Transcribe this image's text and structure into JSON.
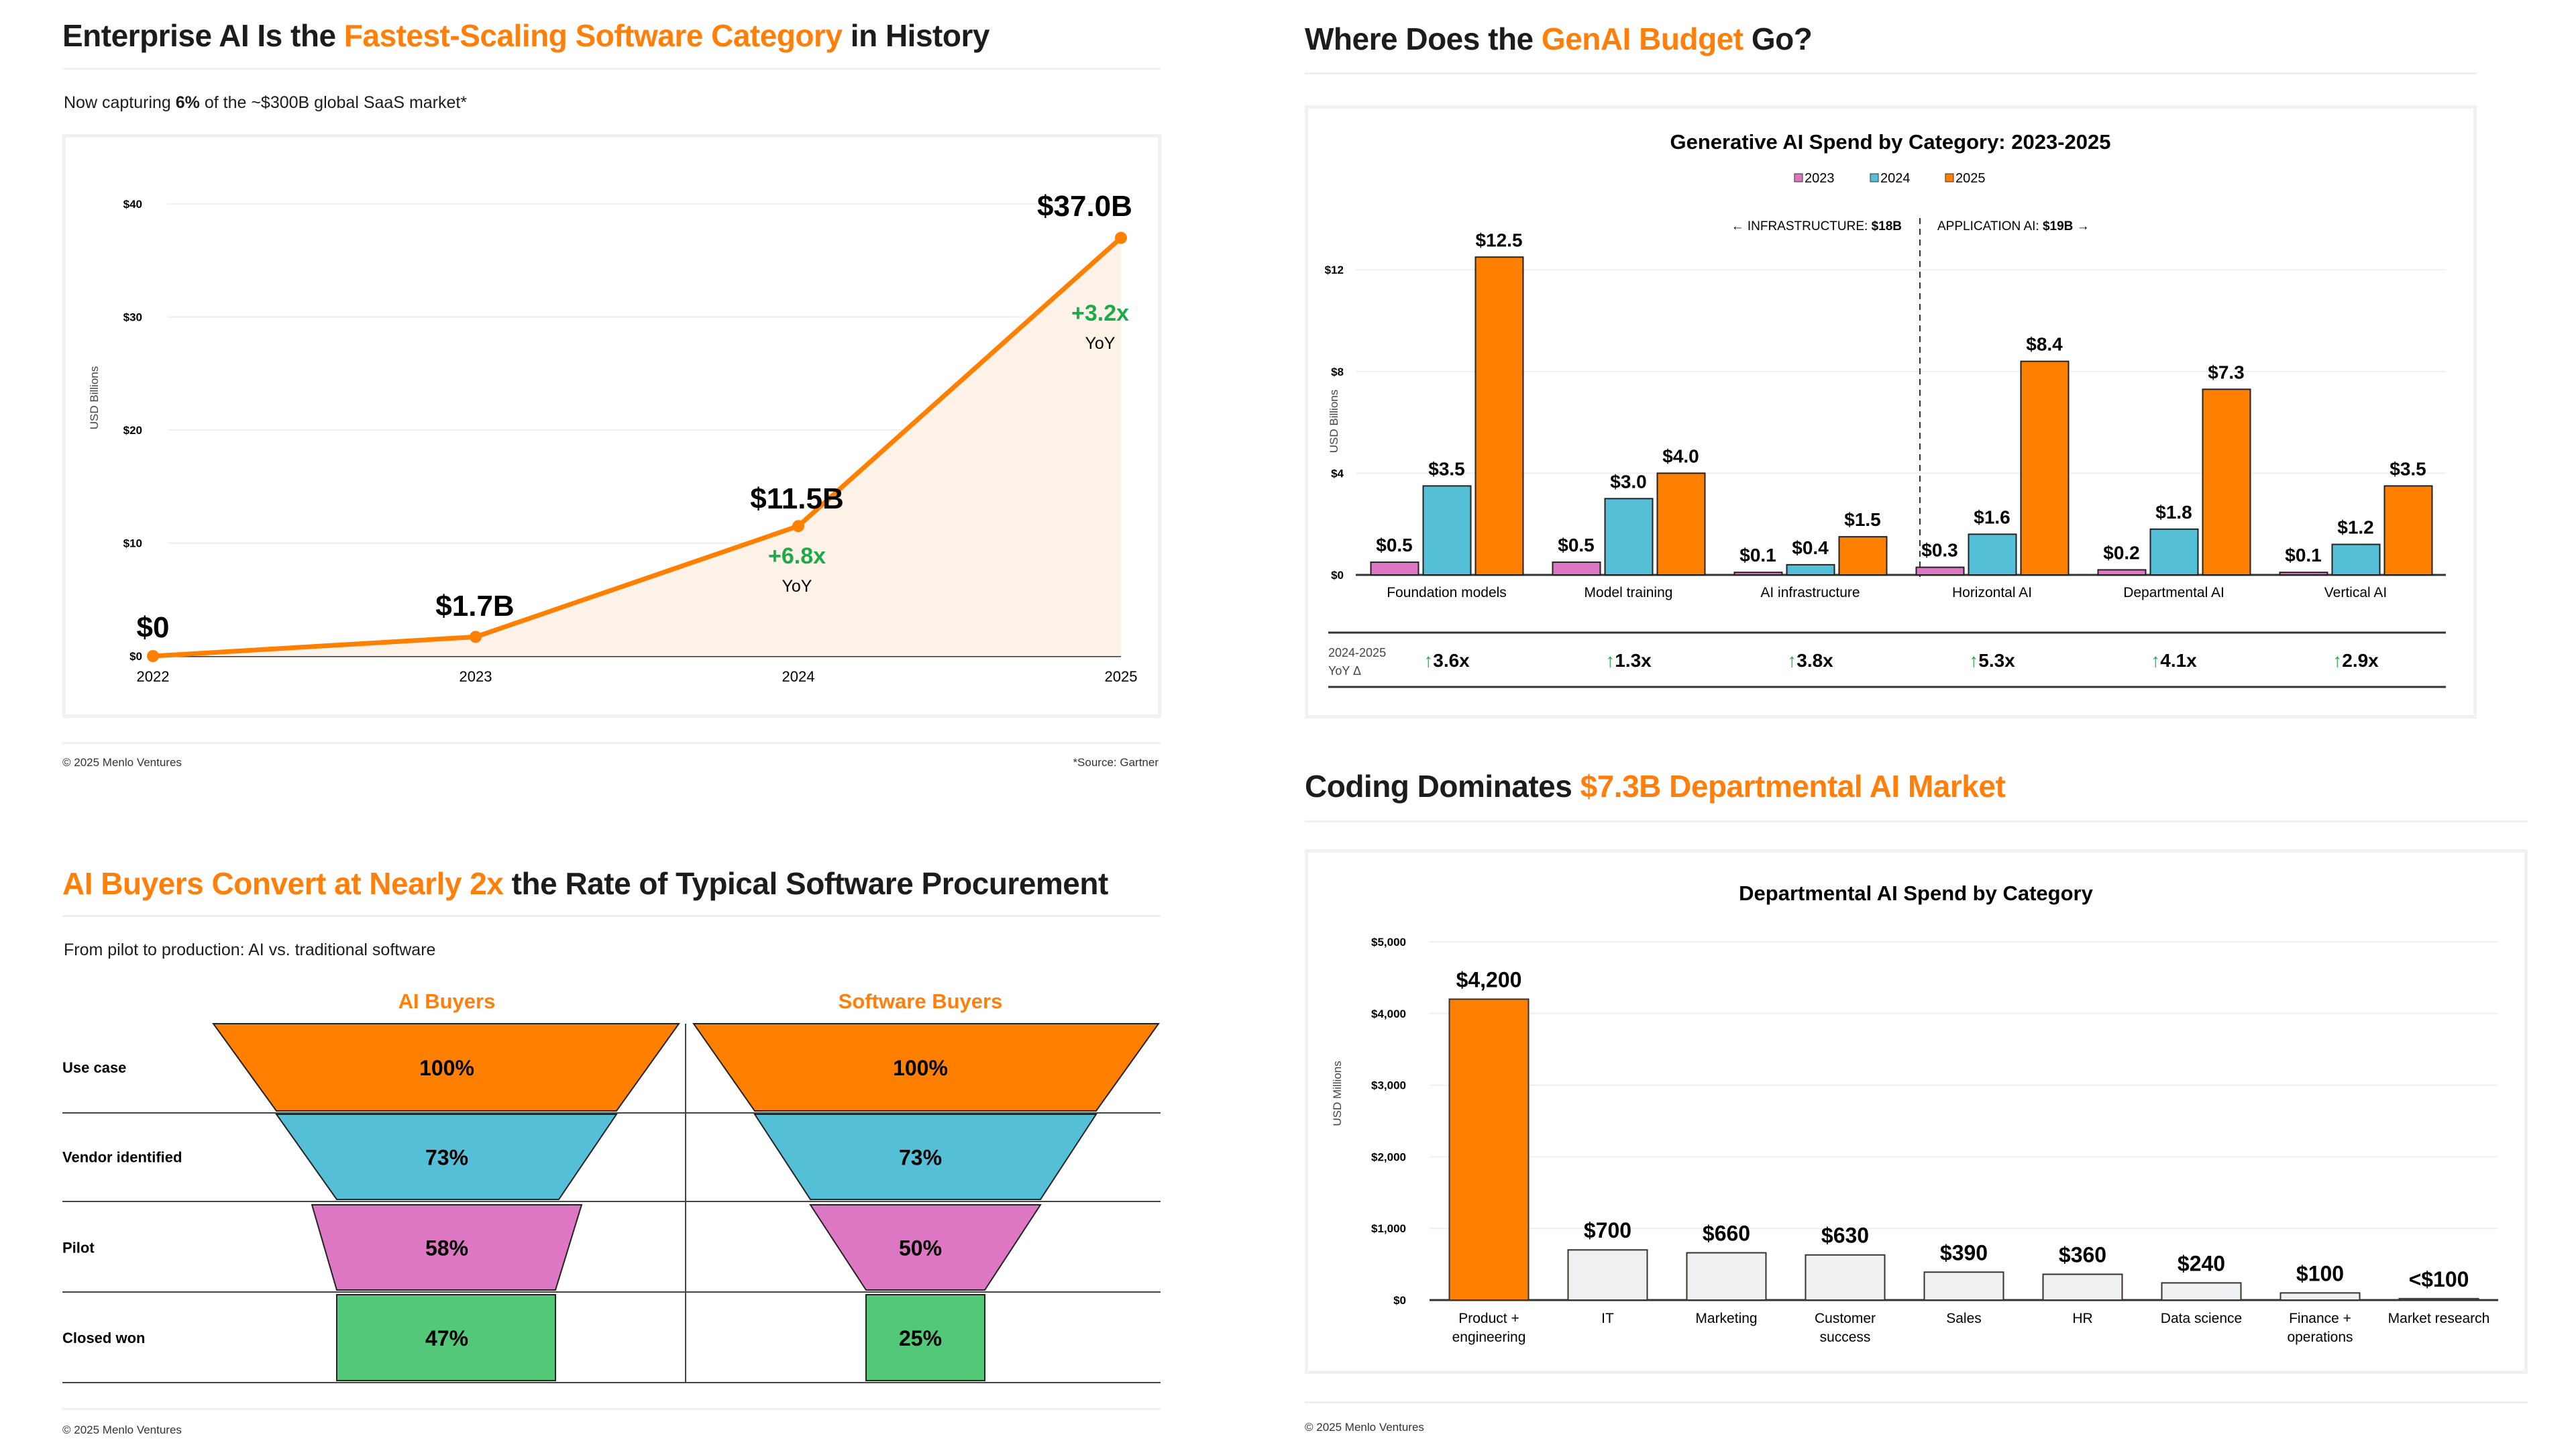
{
  "colors": {
    "accent": "#ff7f0a",
    "bar_orange": "#ff8000",
    "pink": "#dd77c4",
    "blue": "#56bfd8",
    "green_funnel": "#52c878",
    "growth_green": "#1faa4a",
    "area_fill": "#fdf2e7",
    "gray_bar": "#eff0f1"
  },
  "panels": {
    "growth": {
      "title_pre": "Enterprise AI Is the ",
      "title_hl": "Fastest-Scaling Software Category",
      "title_post": " in History",
      "subtitle_pre": "Now capturing ",
      "subtitle_bold": "6%",
      "subtitle_post": " of the ~$300B global SaaS market*",
      "footer_left": "© 2025 Menlo Ventures",
      "footer_right": "*Source: Gartner"
    },
    "budget": {
      "title_pre": "Where Does the ",
      "title_hl": "GenAI Budget",
      "title_post": " Go?"
    },
    "funnel": {
      "title_hl": "AI Buyers Convert at Nearly 2x",
      "title_post": " the Rate of Typical Software Procurement",
      "subtitle": "From pilot to production: AI vs. traditional software",
      "footer_left": "© 2025 Menlo Ventures"
    },
    "coding": {
      "title_pre": "Coding Dominates ",
      "title_hl": "$7.3B Departmental AI Market",
      "footer_left": "© 2025 Menlo Ventures"
    }
  },
  "chart_data": [
    {
      "id": "growth",
      "type": "area",
      "title": "",
      "xlabel": "",
      "ylabel": "USD Billions",
      "x": [
        "2022",
        "2023",
        "2024",
        "2025"
      ],
      "values": [
        0,
        1.7,
        11.5,
        37.0
      ],
      "value_labels": [
        "$0",
        "$1.7B",
        "$11.5B",
        "$37.0B"
      ],
      "ylim": [
        0,
        40
      ],
      "yticks": [
        0,
        10,
        20,
        30,
        40
      ],
      "ytick_labels": [
        "$0",
        "$10",
        "$20",
        "$30",
        "$40"
      ],
      "annotations": [
        {
          "x": "2024",
          "text": "+6.8x",
          "sub": "YoY"
        },
        {
          "x": "2025",
          "text": "+3.2x",
          "sub": "YoY"
        }
      ],
      "grid": true
    },
    {
      "id": "genai-spend",
      "type": "bar",
      "title": "Generative AI Spend by Category: 2023-2025",
      "ylabel": "USD Billions",
      "categories": [
        "Foundation models",
        "Model training",
        "AI infrastructure",
        "Horizontal AI",
        "Departmental AI",
        "Vertical AI"
      ],
      "series": [
        {
          "name": "2023",
          "values": [
            0.5,
            0.5,
            0.1,
            0.3,
            0.2,
            0.1
          ],
          "labels": [
            "$0.5",
            "$0.5",
            "$0.1",
            "$0.3",
            "$0.2",
            "$0.1"
          ]
        },
        {
          "name": "2024",
          "values": [
            3.5,
            3.0,
            0.4,
            1.6,
            1.8,
            1.2
          ],
          "labels": [
            "$3.5",
            "$3.0",
            "$0.4",
            "$1.6",
            "$1.8",
            "$1.2"
          ]
        },
        {
          "name": "2025",
          "values": [
            12.5,
            4.0,
            1.5,
            8.4,
            7.3,
            3.5
          ],
          "labels": [
            "$12.5",
            "$4.0",
            "$1.5",
            "$8.4",
            "$7.3",
            "$3.5"
          ]
        }
      ],
      "ylim": [
        0,
        13
      ],
      "yticks": [
        0,
        4,
        8,
        12
      ],
      "ytick_labels": [
        "$0",
        "$4",
        "$8",
        "$12"
      ],
      "annotations": {
        "left_pre": "← INFRASTRUCTURE: ",
        "left_bold": "$18B",
        "right_pre": "APPLICATION AI: ",
        "right_bold": "$19B",
        "right_post": " →"
      },
      "yoy_label_1": "2024-2025",
      "yoy_label_2": "YoY Δ",
      "yoy": [
        "3.6x",
        "1.3x",
        "3.8x",
        "5.3x",
        "4.1x",
        "2.9x"
      ],
      "legend": "top-center",
      "grid": true
    },
    {
      "id": "funnel",
      "type": "table",
      "columns": [
        "AI Buyers",
        "Software Buyers"
      ],
      "stages": [
        "Use case",
        "Vendor identified",
        "Pilot",
        "Closed won"
      ],
      "series": [
        {
          "name": "AI Buyers",
          "values": [
            100,
            73,
            58,
            47
          ],
          "labels": [
            "100%",
            "73%",
            "58%",
            "47%"
          ]
        },
        {
          "name": "Software Buyers",
          "values": [
            100,
            73,
            50,
            25
          ],
          "labels": [
            "100%",
            "73%",
            "50%",
            "25%"
          ]
        }
      ]
    },
    {
      "id": "departmental",
      "type": "bar",
      "title": "Departmental AI Spend by Category",
      "ylabel": "USD Millions",
      "categories": [
        [
          "Product +",
          "engineering"
        ],
        [
          "IT"
        ],
        [
          "Marketing"
        ],
        [
          "Customer",
          "success"
        ],
        [
          "Sales"
        ],
        [
          "HR"
        ],
        [
          "Data science"
        ],
        [
          "Finance +",
          "operations"
        ],
        [
          "Market research"
        ]
      ],
      "values": [
        4200,
        700,
        660,
        630,
        390,
        360,
        240,
        100,
        20
      ],
      "value_labels": [
        "$4,200",
        "$700",
        "$660",
        "$630",
        "$390",
        "$360",
        "$240",
        "$100",
        "<$100"
      ],
      "ylim": [
        0,
        5000
      ],
      "yticks": [
        0,
        1000,
        2000,
        3000,
        4000,
        5000
      ],
      "ytick_labels": [
        "$0",
        "$1,000",
        "$2,000",
        "$3,000",
        "$4,000",
        "$5,000"
      ],
      "grid": true
    }
  ]
}
